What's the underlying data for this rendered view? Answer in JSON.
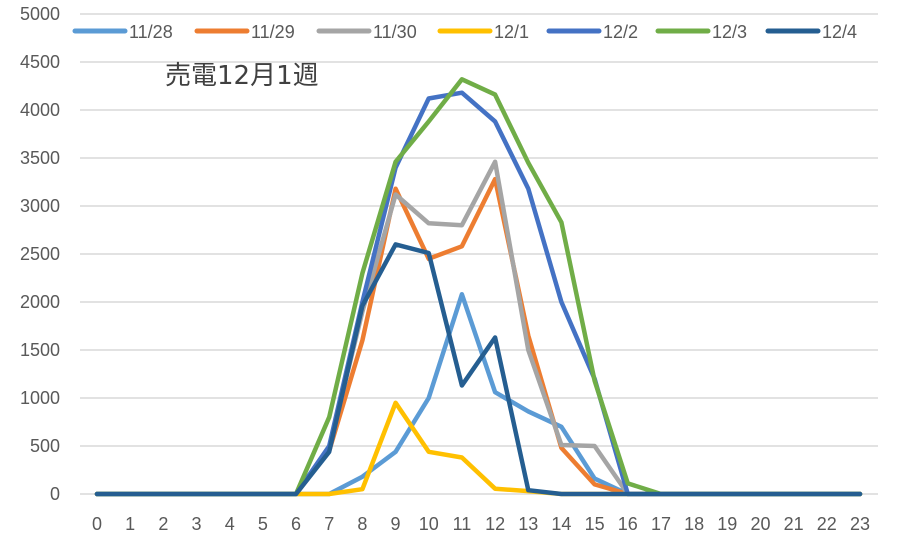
{
  "chart_data": {
    "type": "line",
    "title": "売電12月1週",
    "xlabel": "",
    "ylabel": "",
    "x": [
      0,
      1,
      2,
      3,
      4,
      5,
      6,
      7,
      8,
      9,
      10,
      11,
      12,
      13,
      14,
      15,
      16,
      17,
      18,
      19,
      20,
      21,
      22,
      23
    ],
    "ylim": [
      0,
      5000
    ],
    "yticks": [
      0,
      500,
      1000,
      1500,
      2000,
      2500,
      3000,
      3500,
      4000,
      4500,
      5000
    ],
    "grid": true,
    "legend_position": "top",
    "series": [
      {
        "name": "11/28",
        "color": "#5B9BD5",
        "values": [
          0,
          0,
          0,
          0,
          0,
          0,
          0,
          0,
          180,
          440,
          1000,
          2080,
          1060,
          860,
          700,
          160,
          0,
          0,
          0,
          0,
          0,
          0,
          0,
          0
        ]
      },
      {
        "name": "11/29",
        "color": "#ED7D31",
        "values": [
          0,
          0,
          0,
          0,
          0,
          0,
          0,
          450,
          1600,
          3180,
          2450,
          2580,
          3280,
          1650,
          480,
          100,
          0,
          0,
          0,
          0,
          0,
          0,
          0,
          0
        ]
      },
      {
        "name": "11/30",
        "color": "#A5A5A5",
        "values": [
          0,
          0,
          0,
          0,
          0,
          0,
          0,
          480,
          1900,
          3120,
          2820,
          2800,
          3460,
          1500,
          510,
          500,
          0,
          0,
          0,
          0,
          0,
          0,
          0,
          0
        ]
      },
      {
        "name": "12/1",
        "color": "#FFC000",
        "values": [
          0,
          0,
          0,
          0,
          0,
          0,
          0,
          0,
          50,
          950,
          440,
          380,
          55,
          30,
          0,
          0,
          0,
          0,
          0,
          0,
          0,
          0,
          0,
          0
        ]
      },
      {
        "name": "12/2",
        "color": "#4472C4",
        "values": [
          0,
          0,
          0,
          0,
          0,
          0,
          0,
          500,
          2000,
          3400,
          4120,
          4180,
          3880,
          3180,
          2000,
          1200,
          0,
          0,
          0,
          0,
          0,
          0,
          0,
          0
        ]
      },
      {
        "name": "12/3",
        "color": "#70AD47",
        "values": [
          0,
          0,
          0,
          0,
          0,
          0,
          0,
          800,
          2300,
          3460,
          3880,
          4320,
          4160,
          3450,
          2830,
          1180,
          110,
          0,
          0,
          0,
          0,
          0,
          0,
          0
        ]
      },
      {
        "name": "12/4",
        "color": "#255E91",
        "values": [
          0,
          0,
          0,
          0,
          0,
          0,
          0,
          440,
          1960,
          2600,
          2510,
          1130,
          1630,
          40,
          0,
          0,
          0,
          0,
          0,
          0,
          0,
          0,
          0,
          0
        ]
      }
    ]
  }
}
